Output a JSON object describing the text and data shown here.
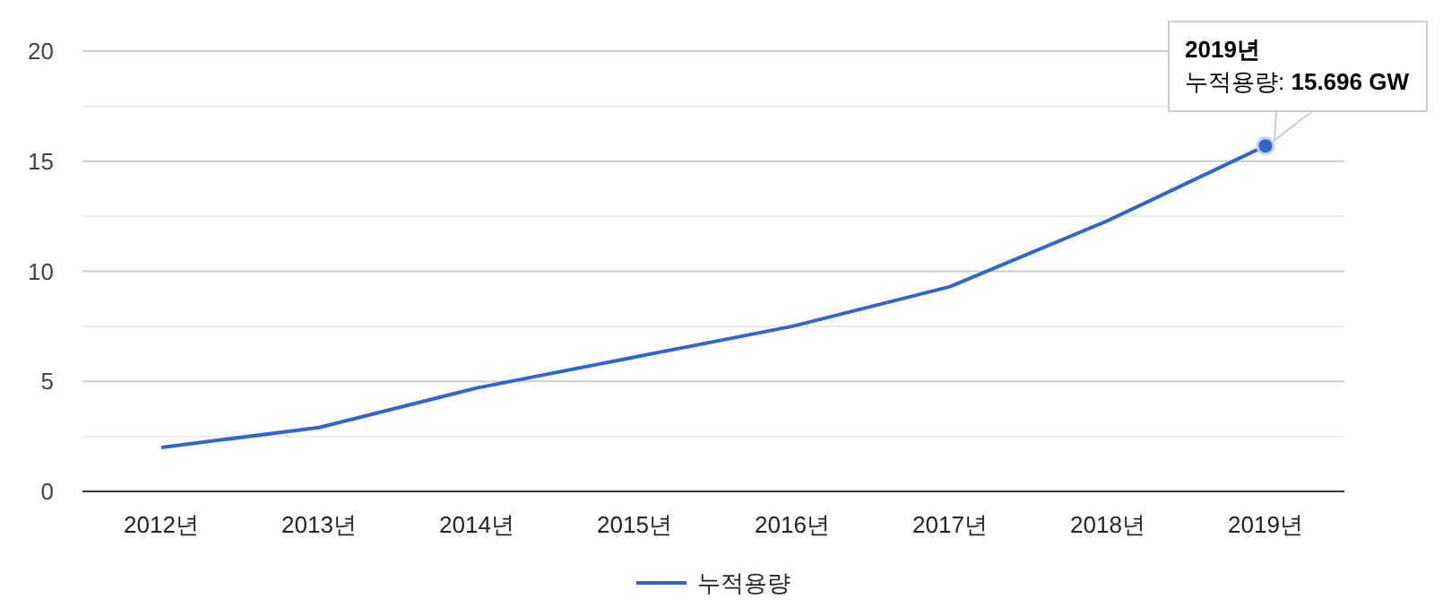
{
  "chart_data": {
    "type": "line",
    "categories": [
      "2012년",
      "2013년",
      "2014년",
      "2015년",
      "2016년",
      "2017년",
      "2018년",
      "2019년"
    ],
    "series": [
      {
        "name": "누적용량",
        "color": "#3366cc",
        "values": [
          2,
          2.9,
          4.7,
          6.1,
          7.5,
          9.3,
          12.3,
          15.696
        ]
      }
    ],
    "ylim": [
      0,
      20
    ],
    "yticks": [
      0,
      {
        "value": 2.5,
        "label": null
      },
      5,
      {
        "value": 7.5,
        "label": null
      },
      10,
      {
        "value": 12.5,
        "label": null
      },
      15,
      {
        "value": 17.5,
        "label": null
      },
      20
    ],
    "grid": "y",
    "legend": "bottom",
    "marker": "none",
    "line_style": "solid",
    "annotations": [
      {
        "text": "2019년\n누적용량: 15.696 GW",
        "x": "2019년",
        "y": 15.696
      }
    ]
  }
}
